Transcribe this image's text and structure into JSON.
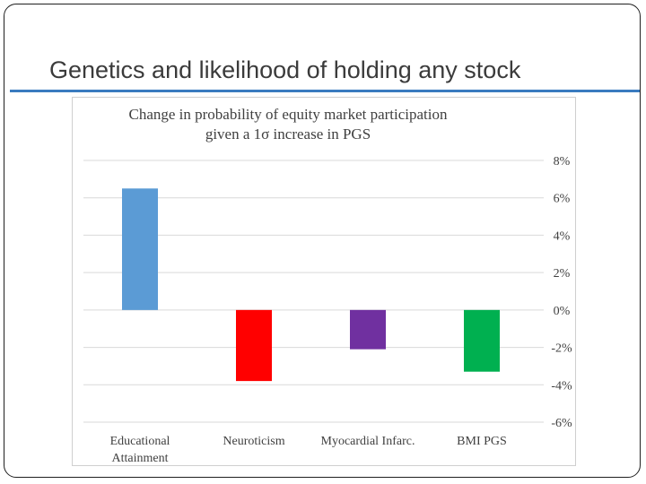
{
  "slide": {
    "title": "Genetics and likelihood of holding any stock"
  },
  "colors": {
    "title_rule": "#3a7bbf",
    "gridline": "#d9d9d9"
  },
  "chart_data": {
    "type": "bar",
    "title_lines": [
      "Change in probability of  equity market participation",
      "given a 1σ increase in PGS"
    ],
    "categories": [
      [
        "Educational",
        "Attainment"
      ],
      [
        "Neuroticism"
      ],
      [
        "Myocardial Infarc."
      ],
      [
        "BMI PGS"
      ]
    ],
    "values": [
      6.5,
      -3.8,
      -2.1,
      -3.3
    ],
    "bar_colors": [
      "#5b9bd5",
      "#ff0000",
      "#7030a0",
      "#00b050"
    ],
    "ylim": [
      -6,
      8
    ],
    "ytick_values": [
      8,
      6,
      4,
      2,
      0,
      -2,
      -4,
      -6
    ],
    "ytick_labels": [
      "8%",
      "6%",
      "4%",
      "2%",
      "0%",
      "-2%",
      "-4%",
      "-6%"
    ],
    "yaxis_position": "right",
    "grid": true,
    "xlabel": "",
    "ylabel": ""
  }
}
